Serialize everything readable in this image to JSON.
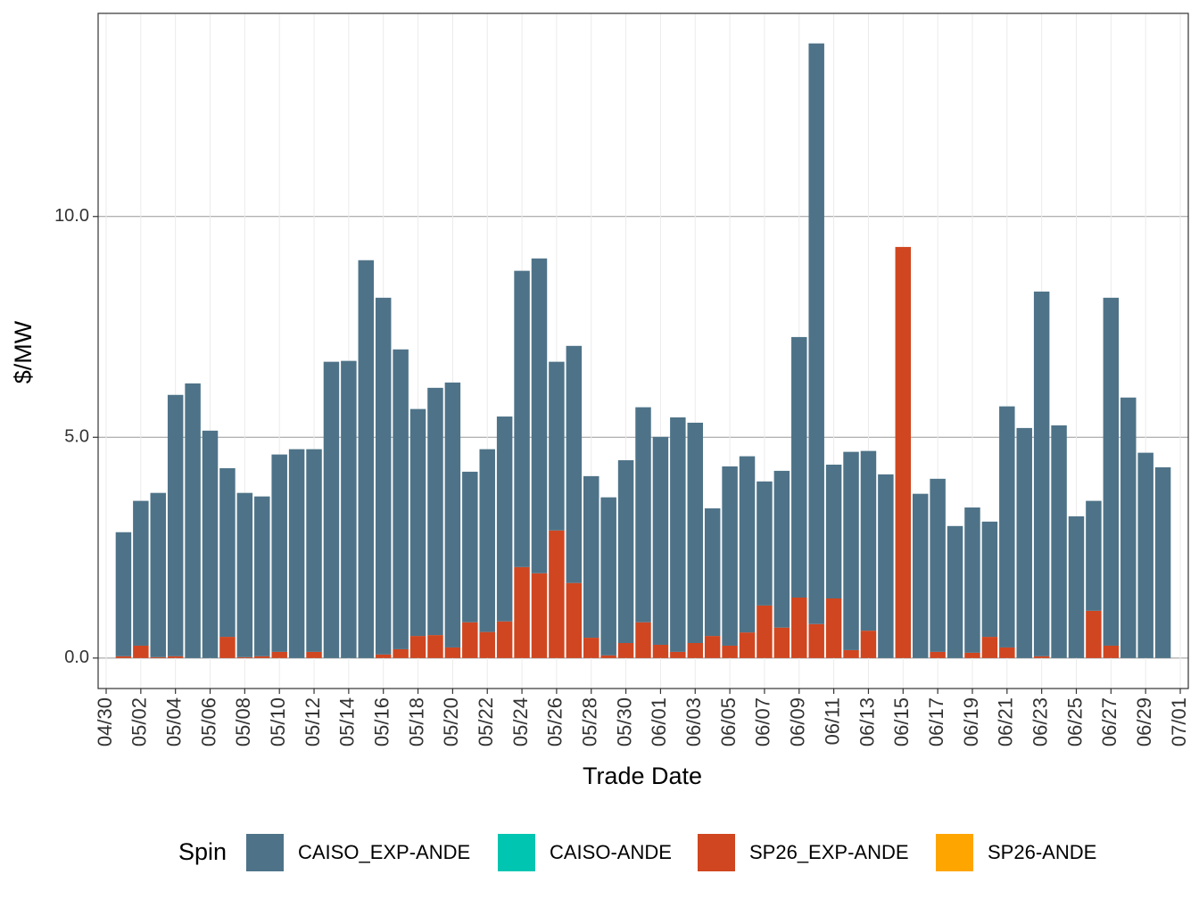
{
  "chart_data": {
    "type": "bar",
    "stacked": true,
    "xlabel": "Trade Date",
    "ylabel": "$/MW",
    "legend_title": "Spin",
    "legend": "bottom",
    "grid": true,
    "categories": [
      "05/01",
      "05/02",
      "05/03",
      "05/04",
      "05/05",
      "05/06",
      "05/07",
      "05/08",
      "05/09",
      "05/10",
      "05/11",
      "05/12",
      "05/13",
      "05/14",
      "05/15",
      "05/16",
      "05/17",
      "05/18",
      "05/19",
      "05/20",
      "05/21",
      "05/22",
      "05/23",
      "05/24",
      "05/25",
      "05/26",
      "05/27",
      "05/28",
      "05/29",
      "05/30",
      "05/31",
      "06/01",
      "06/02",
      "06/03",
      "06/04",
      "06/05",
      "06/06",
      "06/07",
      "06/08",
      "06/09",
      "06/10",
      "06/11",
      "06/12",
      "06/13",
      "06/14",
      "06/15",
      "06/16",
      "06/17",
      "06/18",
      "06/19",
      "06/20",
      "06/21",
      "06/22",
      "06/23",
      "06/24",
      "06/25",
      "06/26",
      "06/27",
      "06/28",
      "06/29",
      "06/30"
    ],
    "series": [
      {
        "name": "CAISO_EXP-ANDE",
        "color": "#4e7388",
        "values": [
          2.81,
          3.28,
          3.72,
          5.92,
          6.22,
          5.15,
          3.82,
          3.72,
          3.62,
          4.47,
          4.73,
          4.59,
          6.71,
          6.73,
          9.01,
          8.08,
          6.79,
          5.14,
          5.6,
          6.0,
          3.41,
          4.14,
          4.64,
          6.71,
          7.13,
          3.82,
          5.37,
          3.66,
          3.58,
          4.14,
          4.87,
          4.71,
          5.31,
          4.99,
          2.89,
          4.06,
          3.99,
          2.81,
          3.55,
          5.9,
          13.15,
          3.03,
          4.49,
          4.07,
          4.16,
          0,
          3.72,
          3.92,
          2.99,
          3.29,
          2.61,
          5.46,
          5.21,
          8.26,
          5.27,
          3.21,
          2.49,
          7.88,
          5.9,
          4.65,
          4.32
        ]
      },
      {
        "name": "CAISO-ANDE",
        "color": "#00c5b1",
        "values": [
          null,
          null,
          null,
          null,
          null,
          null,
          null,
          null,
          null,
          null,
          null,
          null,
          null,
          null,
          null,
          null,
          null,
          null,
          null,
          null,
          null,
          null,
          null,
          null,
          null,
          null,
          null,
          null,
          null,
          null,
          null,
          null,
          null,
          null,
          null,
          null,
          null,
          null,
          null,
          null,
          null,
          null,
          null,
          null,
          null,
          null,
          null,
          null,
          null,
          null,
          null,
          null,
          null,
          null,
          null,
          null,
          null,
          null,
          null,
          null,
          null
        ]
      },
      {
        "name": "SP26_EXP-ANDE",
        "color": "#d04620",
        "values": [
          0.04,
          0.28,
          0.02,
          0.04,
          0,
          0,
          0.48,
          0.02,
          0.04,
          0.14,
          0,
          0.14,
          0,
          0,
          0,
          0.08,
          0.2,
          0.5,
          0.52,
          0.24,
          0.81,
          0.59,
          0.83,
          2.06,
          1.92,
          2.89,
          1.7,
          0.46,
          0.06,
          0.34,
          0.81,
          0.3,
          0.14,
          0.34,
          0.5,
          0.28,
          0.58,
          1.19,
          0.69,
          1.37,
          0.77,
          1.35,
          0.18,
          0.62,
          0,
          9.31,
          0,
          0.14,
          0,
          0.12,
          0.48,
          0.24,
          0,
          0.04,
          0,
          0,
          1.07,
          0.28,
          0,
          0,
          0
        ]
      },
      {
        "name": "SP26-ANDE",
        "color": "#ffa500",
        "values": [
          null,
          null,
          null,
          null,
          null,
          null,
          null,
          null,
          null,
          null,
          null,
          null,
          null,
          null,
          null,
          null,
          null,
          null,
          null,
          null,
          null,
          null,
          null,
          null,
          null,
          null,
          null,
          null,
          null,
          null,
          null,
          null,
          null,
          null,
          null,
          null,
          null,
          null,
          null,
          null,
          null,
          null,
          null,
          null,
          null,
          null,
          null,
          null,
          null,
          null,
          null,
          null,
          null,
          null,
          null,
          null,
          null,
          null,
          null,
          null,
          null
        ]
      }
    ],
    "ylim": [
      -0.69,
      14.6
    ],
    "yticks": [
      {
        "value": 0,
        "label": "0.0"
      },
      {
        "value": 5,
        "label": "5.0"
      },
      {
        "value": 10,
        "label": "10.0"
      }
    ],
    "xticks": [
      "04/30",
      "05/02",
      "05/04",
      "05/06",
      "05/08",
      "05/10",
      "05/12",
      "05/14",
      "05/16",
      "05/18",
      "05/20",
      "05/22",
      "05/24",
      "05/26",
      "05/28",
      "05/30",
      "06/01",
      "06/03",
      "06/05",
      "06/07",
      "06/09",
      "06/11",
      "06/13",
      "06/15",
      "06/17",
      "06/19",
      "06/21",
      "06/23",
      "06/25",
      "06/27",
      "06/29",
      "07/01"
    ]
  }
}
